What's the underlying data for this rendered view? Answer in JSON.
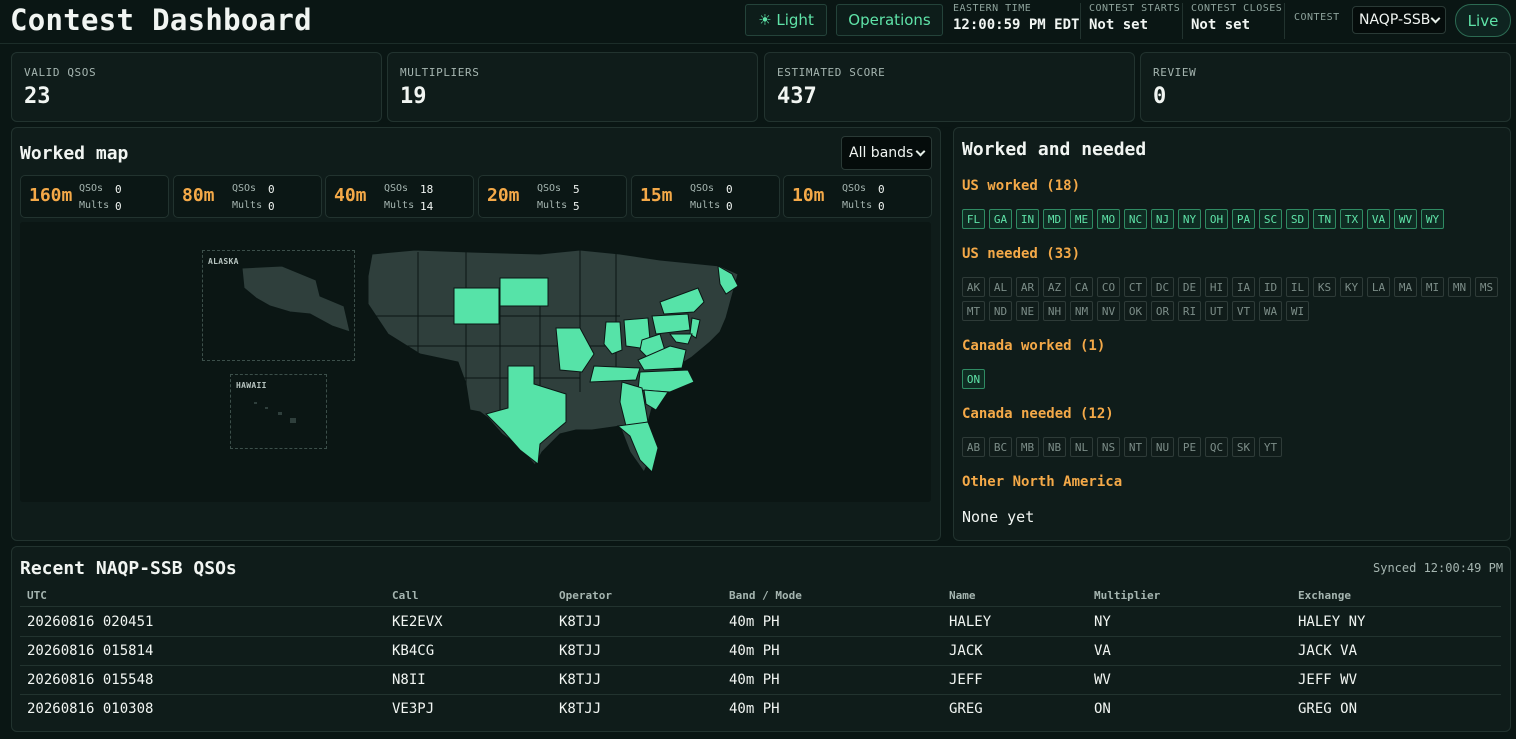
{
  "header": {
    "title": "Contest Dashboard",
    "theme_button": "☀ Light",
    "operations_button": "Operations",
    "eastern_time_label": "EASTERN TIME",
    "eastern_time_value": "12:00:59 PM EDT",
    "contest_starts_label": "CONTEST STARTS",
    "contest_starts_value": "Not set",
    "contest_closes_label": "CONTEST CLOSES",
    "contest_closes_value": "Not set",
    "contest_label": "CONTEST",
    "contest_select_value": "NAQP-SSB",
    "live_button": "Live"
  },
  "stats": [
    {
      "label": "VALID QSOS",
      "value": "23"
    },
    {
      "label": "MULTIPLIERS",
      "value": "19"
    },
    {
      "label": "ESTIMATED SCORE",
      "value": "437"
    },
    {
      "label": "REVIEW",
      "value": "0"
    }
  ],
  "map_panel": {
    "title": "Worked map",
    "band_filter_value": "All bands",
    "qsos_label": "QSOs",
    "mults_label": "Mults",
    "alaska_label": "ALASKA",
    "hawaii_label": "HAWAII",
    "worked_color": "#56e3a8",
    "unworked_color": "#2f3f3c",
    "bands": [
      {
        "band": "160m",
        "qsos": "0",
        "mults": "0"
      },
      {
        "band": "80m",
        "qsos": "0",
        "mults": "0"
      },
      {
        "band": "40m",
        "qsos": "18",
        "mults": "14"
      },
      {
        "band": "20m",
        "qsos": "5",
        "mults": "5"
      },
      {
        "band": "15m",
        "qsos": "0",
        "mults": "0"
      },
      {
        "band": "10m",
        "qsos": "0",
        "mults": "0"
      }
    ]
  },
  "needed_panel": {
    "title": "Worked and needed",
    "us_worked_title": "US worked (18)",
    "us_worked": [
      "FL",
      "GA",
      "IN",
      "MD",
      "ME",
      "MO",
      "NC",
      "NJ",
      "NY",
      "OH",
      "PA",
      "SC",
      "SD",
      "TN",
      "TX",
      "VA",
      "WV",
      "WY"
    ],
    "us_needed_title": "US needed (33)",
    "us_needed": [
      "AK",
      "AL",
      "AR",
      "AZ",
      "CA",
      "CO",
      "CT",
      "DC",
      "DE",
      "HI",
      "IA",
      "ID",
      "IL",
      "KS",
      "KY",
      "LA",
      "MA",
      "MI",
      "MN",
      "MS",
      "MT",
      "ND",
      "NE",
      "NH",
      "NM",
      "NV",
      "OK",
      "OR",
      "RI",
      "UT",
      "VT",
      "WA",
      "WI"
    ],
    "ca_worked_title": "Canada worked (1)",
    "ca_worked": [
      "ON"
    ],
    "ca_needed_title": "Canada needed (12)",
    "ca_needed": [
      "AB",
      "BC",
      "MB",
      "NB",
      "NL",
      "NS",
      "NT",
      "NU",
      "PE",
      "QC",
      "SK",
      "YT"
    ],
    "other_title": "Other North America",
    "other_value": "None yet"
  },
  "qso_table": {
    "title": "Recent NAQP-SSB QSOs",
    "synced": "Synced 12:00:49 PM",
    "headers": [
      "UTC",
      "Call",
      "Operator",
      "Band / Mode",
      "Name",
      "Multiplier",
      "Exchange"
    ],
    "rows": [
      [
        "20260816 020451",
        "KE2EVX",
        "K8TJJ",
        "40m PH",
        "HALEY",
        "NY",
        "HALEY NY"
      ],
      [
        "20260816 015814",
        "KB4CG",
        "K8TJJ",
        "40m PH",
        "JACK",
        "VA",
        "JACK VA"
      ],
      [
        "20260816 015548",
        "N8II",
        "K8TJJ",
        "40m PH",
        "JEFF",
        "WV",
        "JEFF WV"
      ],
      [
        "20260816 010308",
        "VE3PJ",
        "K8TJJ",
        "40m PH",
        "GREG",
        "ON",
        "GREG ON"
      ]
    ]
  }
}
